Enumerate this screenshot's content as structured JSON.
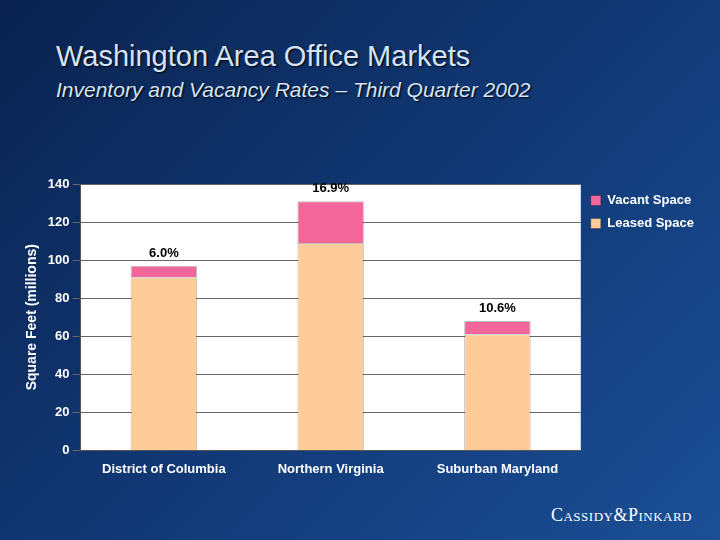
{
  "chart_data": {
    "type": "bar",
    "title": "Washington Area Office Markets",
    "subtitle": "Inventory and Vacancy Rates – Third Quarter 2002",
    "y_label": "Square Feet (millions)",
    "categories": [
      "District of Columbia",
      "Northern Virginia",
      "Suburban Maryland"
    ],
    "series": [
      {
        "name": "Leased Space",
        "color": "#fdcc99",
        "values": [
          91,
          109,
          61
        ]
      },
      {
        "name": "Vacant Space",
        "color": "#f2679a",
        "values": [
          6,
          22,
          7
        ]
      }
    ],
    "annotations": [
      {
        "category": "District of Columbia",
        "text": "6.0%"
      },
      {
        "category": "Northern Virginia",
        "text": "16.9%"
      },
      {
        "category": "Suburban Maryland",
        "text": "10.6%"
      }
    ],
    "ylim": [
      0,
      140
    ],
    "yticks": [
      0,
      20,
      40,
      60,
      80,
      100,
      120,
      140
    ],
    "stacked": true,
    "grid": true,
    "legend": "right",
    "footer": "Cassidy&Pinkard"
  }
}
